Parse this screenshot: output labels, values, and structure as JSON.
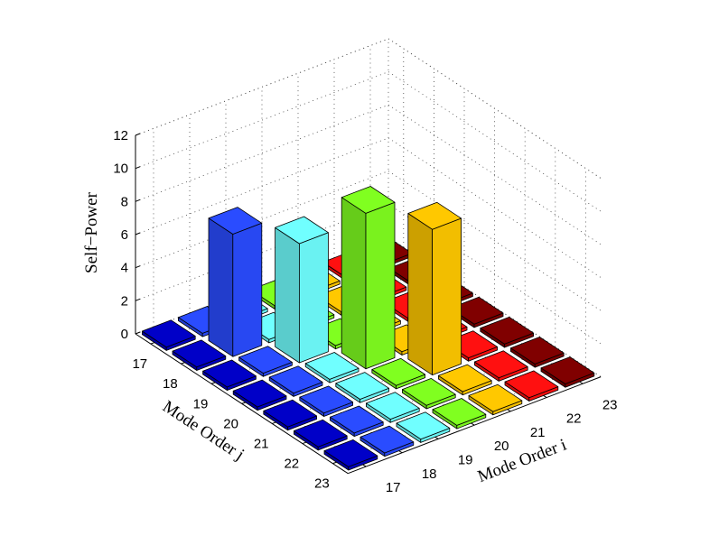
{
  "chart_data": {
    "type": "bar3",
    "xlabel": "Mode Order i",
    "ylabel": "Mode Order j",
    "zlabel": "Self−Power",
    "categories_i": [
      "17",
      "18",
      "19",
      "20",
      "21",
      "22",
      "23"
    ],
    "categories_j": [
      "17",
      "18",
      "19",
      "20",
      "21",
      "22",
      "23"
    ],
    "colors": [
      "#0000c8",
      "#2a4cff",
      "#70ffff",
      "#80ff20",
      "#ffc800",
      "#ff1010",
      "#800000"
    ],
    "values": [
      [
        0.2,
        0.2,
        0.2,
        0.2,
        0.2,
        0.2,
        0.2
      ],
      [
        0.2,
        7.4,
        0.2,
        0.2,
        0.2,
        0.2,
        0.2
      ],
      [
        0.2,
        0.2,
        7.2,
        0.2,
        0.2,
        0.2,
        0.2
      ],
      [
        0.2,
        0.2,
        0.2,
        9.4,
        0.2,
        0.2,
        0.2
      ],
      [
        0.2,
        0.2,
        0.2,
        0.2,
        8.8,
        0.2,
        0.2
      ],
      [
        0.2,
        0.2,
        0.2,
        0.2,
        0.2,
        0.2,
        0.2
      ],
      [
        0.2,
        0.2,
        0.2,
        0.2,
        0.2,
        0.2,
        0.2
      ]
    ],
    "zlim": [
      0,
      12
    ],
    "zticks": [
      0,
      2,
      4,
      6,
      8,
      10,
      12
    ],
    "grid": true
  }
}
